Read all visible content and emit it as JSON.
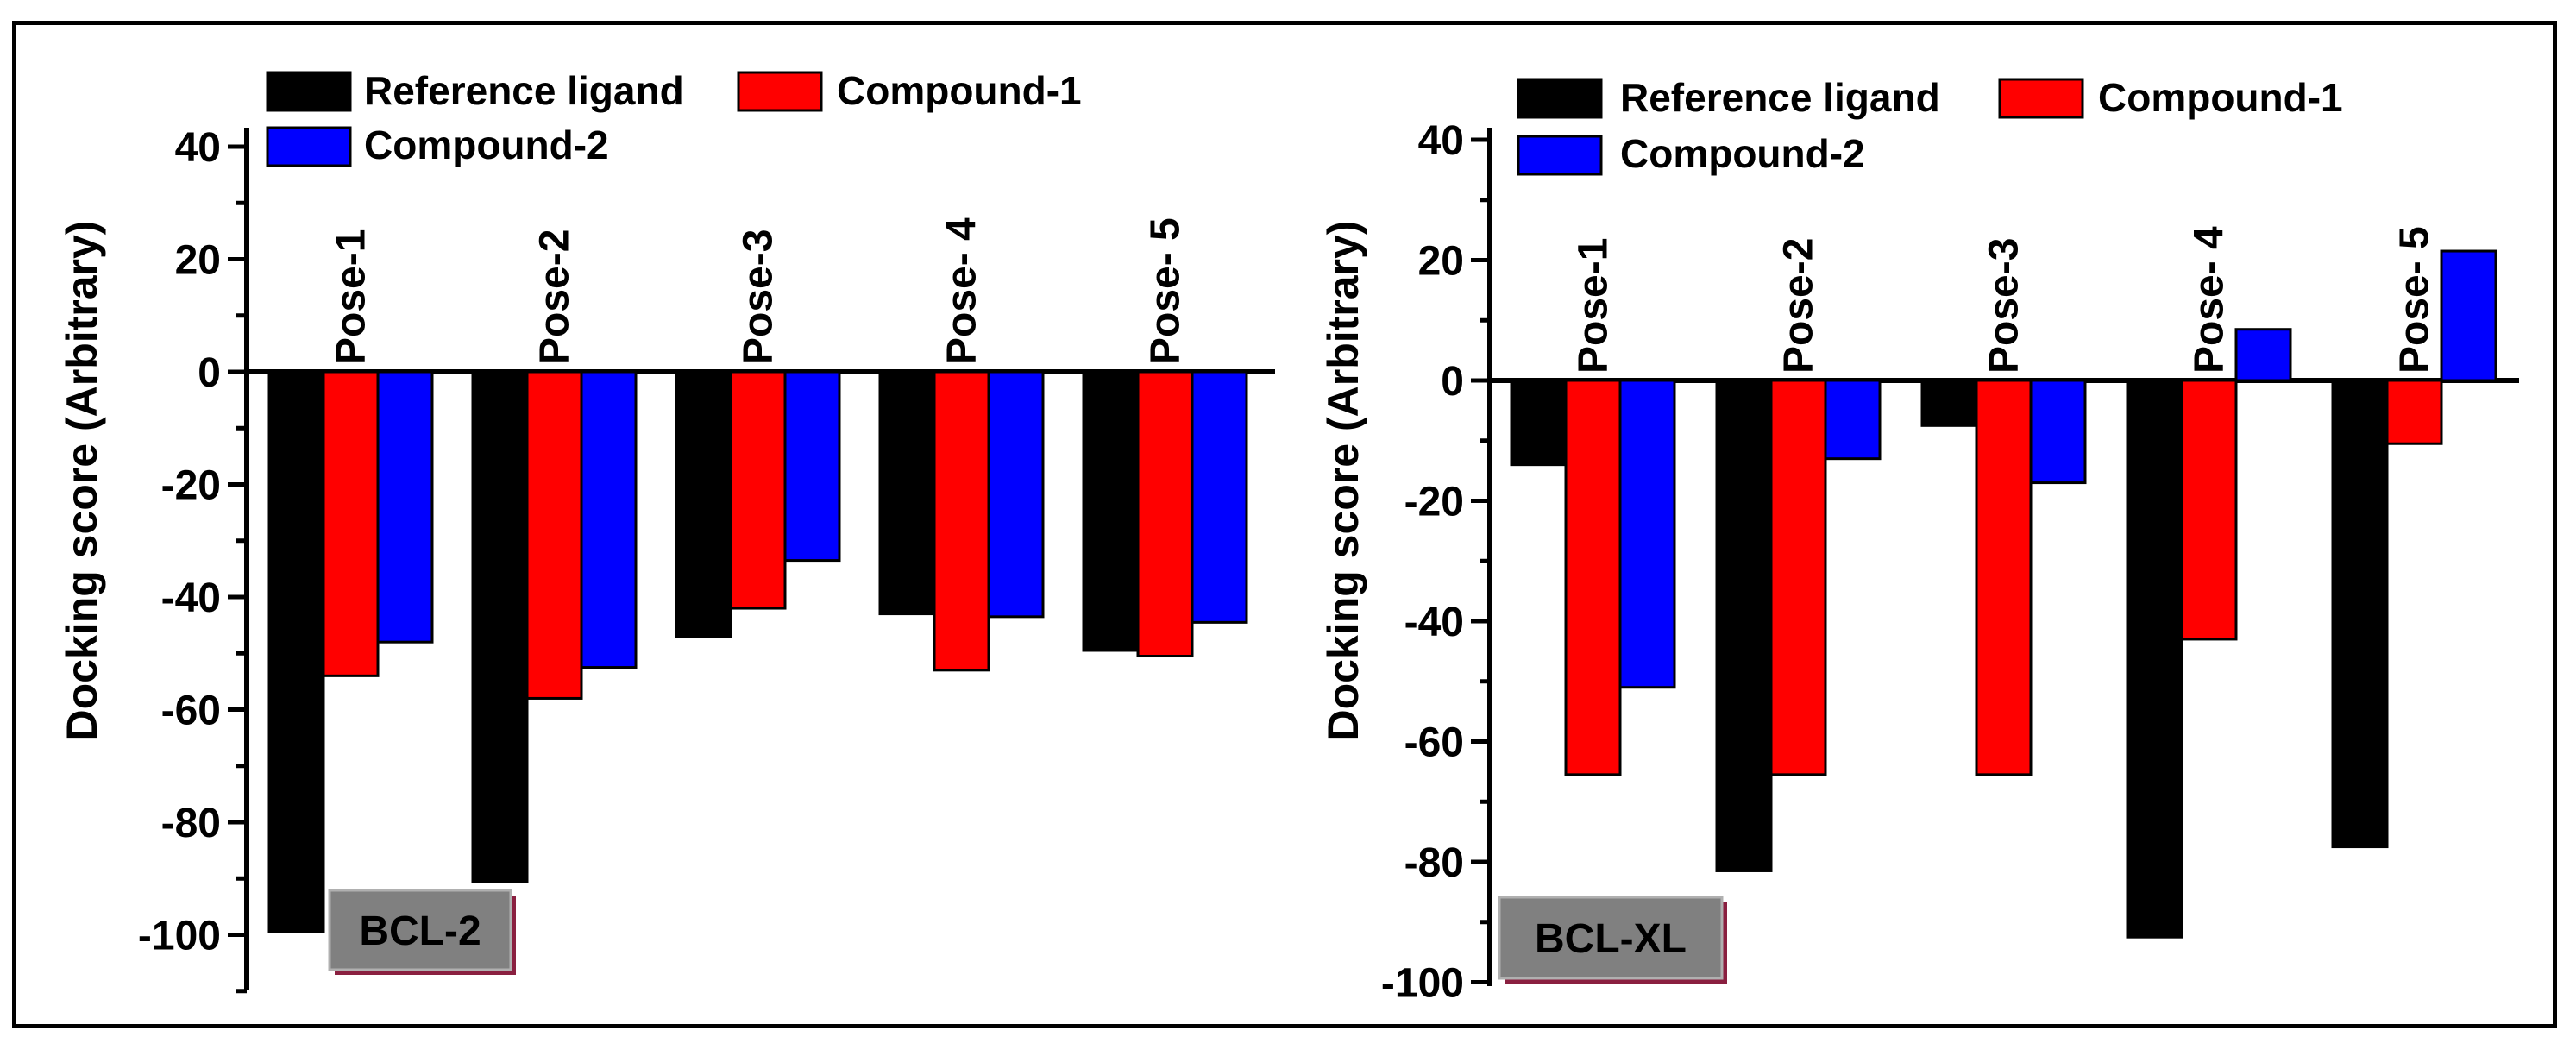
{
  "chart_data": [
    {
      "type": "bar",
      "panel_label": "BCL-2",
      "categories": [
        "Pose-1",
        "Pose-2",
        "Pose-3",
        "Pose- 4",
        "Pose- 5"
      ],
      "series": [
        {
          "name": "Reference ligand",
          "color": "#000000",
          "values": [
            -99.5,
            -90.5,
            -47,
            -43,
            -49.5
          ]
        },
        {
          "name": "Compound-1",
          "color": "#ff0000",
          "values": [
            -54,
            -58,
            -42,
            -53,
            -50.5
          ]
        },
        {
          "name": "Compound-2",
          "color": "#0000ff",
          "values": [
            -48,
            -52.5,
            -33.5,
            -43.5,
            -44.5
          ]
        }
      ],
      "ylabel": "Docking score (Arbitrary)",
      "ylim": [
        -110,
        40
      ],
      "yticks": [
        40,
        20,
        0,
        -20,
        -40,
        -60,
        -80,
        -100
      ],
      "legend": "top"
    },
    {
      "type": "bar",
      "panel_label": "BCL-XL",
      "categories": [
        "Pose-1",
        "Pose-2",
        "Pose-3",
        "Pose- 4",
        "Pose- 5"
      ],
      "series": [
        {
          "name": "Reference ligand",
          "color": "#000000",
          "values": [
            -14,
            -81.5,
            -7.5,
            -92.5,
            -77.5
          ]
        },
        {
          "name": "Compound-1",
          "color": "#ff0000",
          "values": [
            -65.5,
            -65.5,
            -65.5,
            -43,
            -10.5
          ]
        },
        {
          "name": "Compound-2",
          "color": "#0000ff",
          "values": [
            -51,
            -13,
            -17,
            8.5,
            21.5
          ]
        }
      ],
      "ylabel": "Docking score (Arbitrary)",
      "ylim": [
        -100,
        40
      ],
      "yticks": [
        40,
        20,
        0,
        -20,
        -40,
        -60,
        -80,
        -100
      ],
      "legend": "top"
    }
  ]
}
